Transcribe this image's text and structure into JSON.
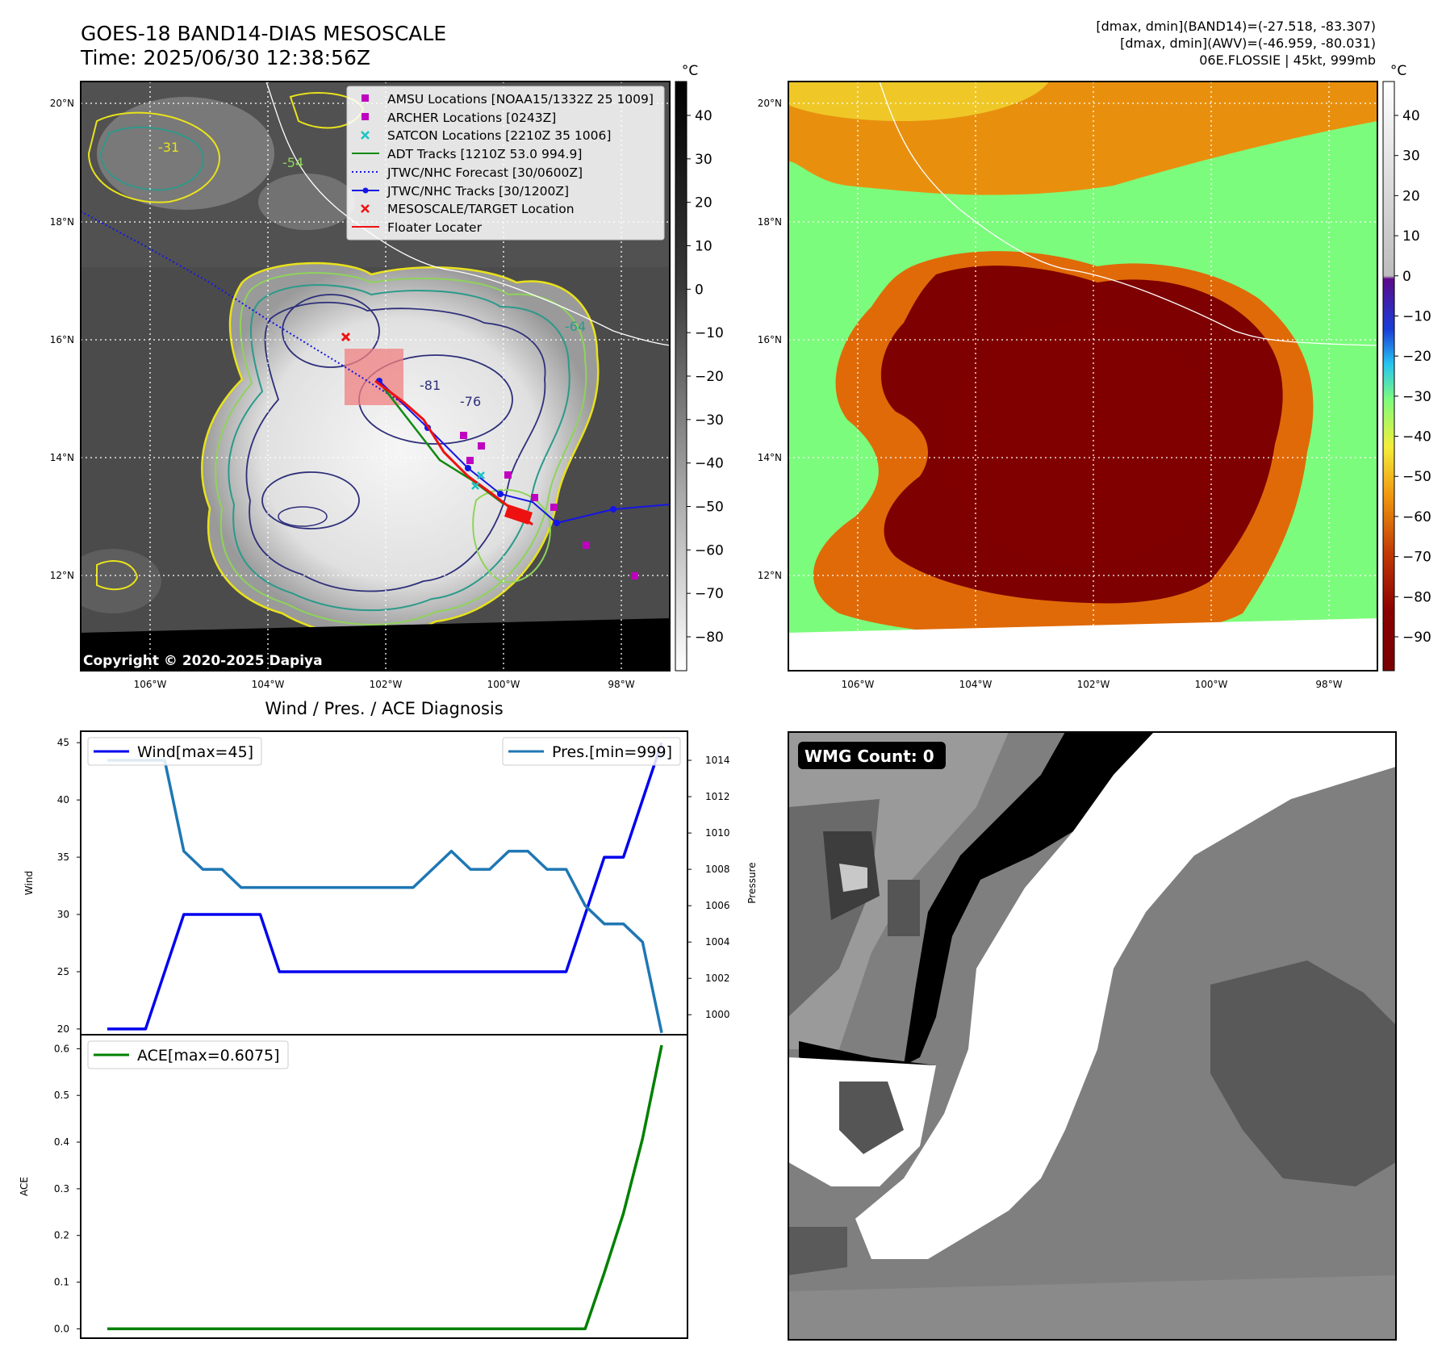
{
  "header": {
    "title_line1": "GOES-18 BAND14-DIAS MESOSCALE",
    "title_line2": "Time: 2025/06/30 12:38:56Z",
    "info_line1": "[dmax, dmin](BAND14)=(-27.518, -83.307)",
    "info_line2": "[dmax, dmin](AWV)=(-46.959, -80.031)",
    "info_line3": "06E.FLOSSIE | 45kt, 999mb"
  },
  "maps": {
    "lat_labels": [
      "20°N",
      "18°N",
      "16°N",
      "14°N",
      "12°N"
    ],
    "lon_labels": [
      "106°W",
      "104°W",
      "102°W",
      "100°W",
      "98°W"
    ],
    "copyright": "Copyright © 2020-2025 Dapiya",
    "unit": "°C",
    "contour_labels": [
      "-31",
      "-54",
      "-64",
      "-76",
      "-81"
    ],
    "ir_colorbar_ticks": [
      "40",
      "30",
      "20",
      "10",
      "0",
      "−10",
      "−20",
      "−30",
      "−40",
      "−50",
      "−60",
      "−70",
      "−80"
    ],
    "colors": {
      "ir_bg": "#4a4a4a",
      "contour_yellow": "#e8e21c",
      "contour_lightgreen": "#8fd35a",
      "contour_teal": "#2a9a8a",
      "contour_navy": "#2e2f7a",
      "enhanced_green": "#7cfc7c",
      "enhanced_orange": "#e8900e",
      "enhanced_darkred": "#7e0000"
    },
    "legend": [
      {
        "label": "AMSU Locations [NOAA15/1332Z 25 1009]",
        "marker": "square",
        "color": "#c000c0"
      },
      {
        "label": "ARCHER Locations [0243Z]",
        "marker": "square",
        "color": "#c000c0"
      },
      {
        "label": "SATCON Locations [2210Z 35 1006]",
        "marker": "x",
        "color": "#19c3c3"
      },
      {
        "label": "ADT Tracks [1210Z 53.0 994.9]",
        "marker": "line",
        "color": "#138a13"
      },
      {
        "label": "JTWC/NHC Forecast [30/0600Z]",
        "marker": "dotted",
        "color": "#1515e6"
      },
      {
        "label": "JTWC/NHC Tracks [30/1200Z]",
        "marker": "line-dot",
        "color": "#1515e6"
      },
      {
        "label": "MESOSCALE/TARGET Location",
        "marker": "x",
        "color": "#ee1111"
      },
      {
        "label": "Floater Locater",
        "marker": "line",
        "color": "#ee1111"
      }
    ],
    "enhanced_colorbar_ticks": [
      "40",
      "30",
      "20",
      "10",
      "0",
      "−10",
      "−20",
      "−30",
      "−40",
      "−50",
      "−60",
      "−70",
      "−80",
      "−90"
    ]
  },
  "chart_data": [
    {
      "type": "line",
      "title": "Wind / Pres. / ACE Diagnosis",
      "ylabel": "Wind",
      "y2label": "Pressure",
      "ylim": [
        19.5,
        46
      ],
      "y2lim": [
        998.9,
        1015.6
      ],
      "yticks": [
        20,
        25,
        30,
        35,
        40,
        45
      ],
      "y2ticks": [
        1000,
        1002,
        1004,
        1006,
        1008,
        1010,
        1012,
        1014
      ],
      "x": [
        0,
        1,
        2,
        3,
        4,
        5,
        6,
        7,
        8,
        9,
        10,
        11,
        12,
        13,
        14,
        15,
        16,
        17,
        18,
        19,
        20,
        21,
        22,
        23,
        24,
        25,
        26,
        27,
        28,
        29
      ],
      "series": [
        {
          "name": "Wind[max=45]",
          "axis": "left",
          "color": "#0000ee",
          "values": [
            20,
            20,
            20,
            25,
            30,
            30,
            30,
            30,
            30,
            25,
            25,
            25,
            25,
            25,
            25,
            25,
            25,
            25,
            25,
            25,
            25,
            25,
            25,
            25,
            25,
            30,
            35,
            35,
            40,
            45
          ]
        },
        {
          "name": "Pres.[min=999]",
          "axis": "right",
          "color": "#1f77b4",
          "values": [
            1014,
            1014,
            1014,
            1014,
            1009,
            1008,
            1008,
            1007,
            1007,
            1007,
            1007,
            1007,
            1007,
            1007,
            1007,
            1007,
            1007,
            1008,
            1009,
            1008,
            1008,
            1009,
            1009,
            1008,
            1008,
            1006,
            1005,
            1005,
            1004,
            999
          ]
        }
      ]
    },
    {
      "type": "line",
      "ylabel": "ACE",
      "ylim": [
        -0.02,
        0.63
      ],
      "yticks": [
        0.0,
        0.1,
        0.2,
        0.3,
        0.4,
        0.5,
        0.6
      ],
      "x": [
        0,
        1,
        2,
        3,
        4,
        5,
        6,
        7,
        8,
        9,
        10,
        11,
        12,
        13,
        14,
        15,
        16,
        17,
        18,
        19,
        20,
        21,
        22,
        23,
        24,
        25,
        26,
        27,
        28,
        29
      ],
      "series": [
        {
          "name": "ACE[max=0.6075]",
          "color": "#008000",
          "values": [
            0,
            0,
            0,
            0,
            0,
            0,
            0,
            0,
            0,
            0,
            0,
            0,
            0,
            0,
            0,
            0,
            0,
            0,
            0,
            0,
            0,
            0,
            0,
            0,
            0,
            0,
            0.12,
            0.2475,
            0.4075,
            0.6075
          ]
        }
      ]
    }
  ],
  "wmg": {
    "badge": "WMG Count: 0"
  }
}
